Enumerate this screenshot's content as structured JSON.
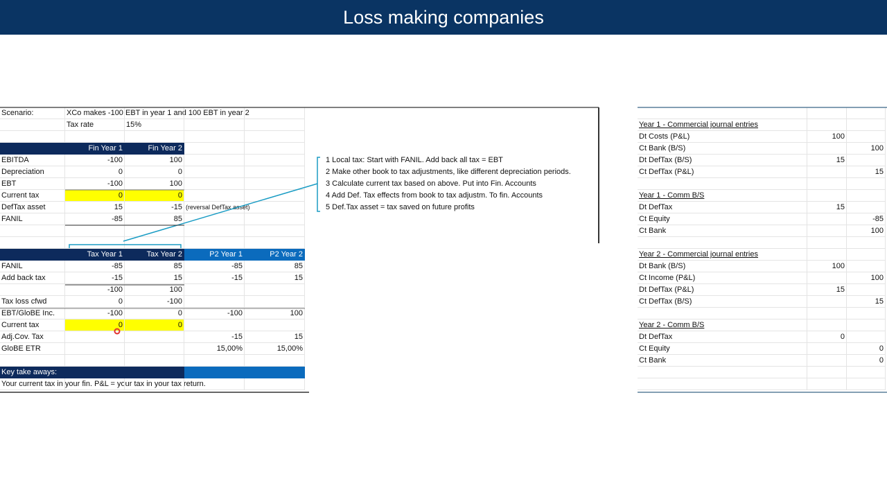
{
  "title": "Loss making companies",
  "colors": {
    "banner": "#0a3463",
    "header_dark": "#0d2a5c",
    "header_blue": "#0b6bbd",
    "highlight": "#ffff00",
    "connector": "#1a9cc4"
  },
  "left_sheet": {
    "rows": [
      [
        "Scenario:",
        "XCo makes -100 EBT in year 1 and 100 EBT in year 2",
        "",
        "",
        ""
      ],
      [
        "",
        "Tax rate",
        "15%",
        "",
        ""
      ],
      [
        "",
        "",
        "",
        "",
        ""
      ],
      [
        "",
        "Fin Year 1",
        "Fin Year 2",
        "",
        ""
      ],
      [
        "EBITDA",
        "-100",
        "100",
        "",
        ""
      ],
      [
        "Depreciation",
        "0",
        "0",
        "",
        ""
      ],
      [
        "EBT",
        "-100",
        "100",
        "",
        ""
      ],
      [
        "Current tax",
        "0",
        "0",
        "",
        ""
      ],
      [
        "DefTax asset",
        "15",
        "-15",
        "(reversal DefTax asset)",
        ""
      ],
      [
        "FANIL",
        "-85",
        "85",
        "",
        ""
      ],
      [
        "",
        "",
        "",
        "",
        ""
      ],
      [
        "",
        "",
        "",
        "",
        ""
      ],
      [
        "",
        "Tax Year 1",
        "Tax Year 2",
        "P2 Year 1",
        "P2 Year 2"
      ],
      [
        "FANIL",
        "-85",
        "85",
        "-85",
        "85"
      ],
      [
        "Add back tax",
        "-15",
        "15",
        "-15",
        "15"
      ],
      [
        "",
        "-100",
        "100",
        "",
        ""
      ],
      [
        "Tax loss cfwd",
        "0",
        "-100",
        "",
        ""
      ],
      [
        "EBT/GloBE Inc.",
        "-100",
        "0",
        "-100",
        "100"
      ],
      [
        "Current tax",
        "0",
        "0",
        "",
        ""
      ],
      [
        "Adj.Cov. Tax",
        "",
        "",
        "-15",
        "15"
      ],
      [
        "GloBE ETR",
        "",
        "",
        "15,00%",
        "15,00%"
      ],
      [
        "",
        "",
        "",
        "",
        ""
      ],
      [
        "Key take aways:",
        "",
        "",
        "",
        ""
      ],
      [
        "Your current tax in your fin. P&L = your tax in your tax return.",
        "",
        "",
        "",
        ""
      ]
    ],
    "highlight_cells": [
      [
        7,
        1
      ],
      [
        7,
        2
      ],
      [
        18,
        1
      ],
      [
        18,
        2
      ]
    ]
  },
  "notes": [
    "1 Local tax: Start with FANIL.  Add back all tax = EBT",
    "2 Make other book to tax adjustments, like different depreciation periods.",
    "3 Calculate current tax based on above.  Put into Fin. Accounts",
    "4 Add Def. Tax effects from book to tax adjustm. To fin. Accounts",
    "5 Def.Tax asset = tax saved on future profits"
  ],
  "right_sheet": {
    "rows": [
      [
        "",
        "",
        ""
      ],
      [
        "Year 1 - Commercial journal entries",
        "",
        ""
      ],
      [
        "Dt Costs (P&L)",
        "100",
        ""
      ],
      [
        "Ct Bank (B/S)",
        "",
        "100"
      ],
      [
        "Dt DefTax (B/S)",
        "15",
        ""
      ],
      [
        "Ct DefTax (P&L)",
        "",
        "15"
      ],
      [
        "",
        "",
        ""
      ],
      [
        "Year 1 - Comm B/S",
        "",
        ""
      ],
      [
        "Dt DefTax",
        "15",
        ""
      ],
      [
        "Ct Equity",
        "",
        "-85"
      ],
      [
        "Ct Bank",
        "",
        "100"
      ],
      [
        "",
        "",
        ""
      ],
      [
        "Year 2 - Commercial journal entries",
        "",
        ""
      ],
      [
        "Dt Bank (B/S)",
        "100",
        ""
      ],
      [
        "Ct Income (P&L)",
        "",
        "100"
      ],
      [
        "Dt DefTax (P&L)",
        "15",
        ""
      ],
      [
        "Ct DefTax (B/S)",
        "",
        "15"
      ],
      [
        "",
        "",
        ""
      ],
      [
        "Year 2 - Comm B/S",
        "",
        ""
      ],
      [
        "Dt DefTax",
        "0",
        ""
      ],
      [
        "Ct Equity",
        "",
        "0"
      ],
      [
        "Ct Bank",
        "",
        "0"
      ],
      [
        "",
        "",
        ""
      ],
      [
        "",
        "",
        ""
      ]
    ]
  }
}
